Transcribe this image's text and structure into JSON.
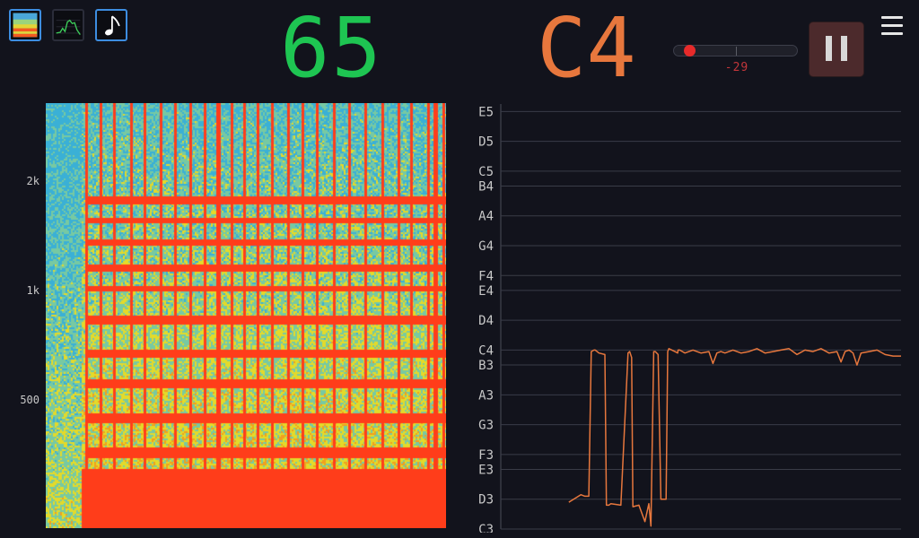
{
  "modes": [
    {
      "name": "spectrogram-mode",
      "active": true
    },
    {
      "name": "waveform-mode",
      "active": false
    },
    {
      "name": "pitch-mode",
      "active": true
    }
  ],
  "readout": {
    "number": "65",
    "note": "C4",
    "number_color": "#1ec552",
    "note_color": "#e7773d"
  },
  "slider": {
    "value_label": "-29",
    "value": -29,
    "range": [
      -100,
      100
    ]
  },
  "buttons": {
    "pause_icon": "pause-icon",
    "menu_icon": "hamburger-menu-icon"
  },
  "spectrogram": {
    "freq_labels": [
      "2k",
      "1k",
      "500"
    ],
    "colormap": [
      "#3ab0d6",
      "#77c9a2",
      "#e3da2a",
      "#f0a020",
      "#ff3d1a"
    ]
  },
  "chart_data": {
    "type": "line",
    "title": "",
    "xlabel": "",
    "ylabel": "",
    "y_tick_labels": [
      "E5",
      "D5",
      "C5",
      "B4",
      "A4",
      "G4",
      "F4",
      "E4",
      "D4",
      "C4",
      "B3",
      "A3",
      "G3",
      "F3",
      "E3",
      "D3",
      "C3"
    ],
    "y_tick_midi": [
      76,
      74,
      72,
      71,
      69,
      67,
      65,
      64,
      62,
      60,
      59,
      57,
      55,
      53,
      52,
      50,
      48
    ],
    "ylim": [
      48,
      76.5
    ],
    "grid": true,
    "series": [
      {
        "color": "#e7773d",
        "x": [
          0.17,
          0.2,
          0.21,
          0.22,
          0.226,
          0.233,
          0.236,
          0.245,
          0.26,
          0.264,
          0.27,
          0.275,
          0.3,
          0.318,
          0.322,
          0.327,
          0.33,
          0.345,
          0.36,
          0.37,
          0.375,
          0.382,
          0.386,
          0.393,
          0.4,
          0.403,
          0.413,
          0.417,
          0.42,
          0.435,
          0.442,
          0.443,
          0.447,
          0.46,
          0.48,
          0.5,
          0.52,
          0.53,
          0.54,
          0.55,
          0.56,
          0.58,
          0.6,
          0.62,
          0.64,
          0.66,
          0.68,
          0.7,
          0.72,
          0.74,
          0.76,
          0.78,
          0.8,
          0.82,
          0.84,
          0.85,
          0.86,
          0.87,
          0.88,
          0.89,
          0.9,
          0.92,
          0.94,
          0.96,
          0.98,
          1.0
        ],
        "y": [
          49.8,
          50.3,
          50.2,
          50.2,
          59.9,
          60.0,
          60.0,
          59.8,
          59.7,
          49.6,
          49.6,
          49.7,
          49.6,
          59.8,
          59.9,
          59.5,
          49.5,
          49.6,
          48.5,
          49.7,
          48.2,
          59.9,
          59.9,
          59.7,
          50.0,
          50.0,
          50.0,
          59.9,
          60.1,
          59.9,
          59.8,
          60.0,
          60.0,
          59.8,
          60.0,
          59.8,
          59.9,
          59.1,
          59.8,
          59.9,
          59.8,
          60.0,
          59.8,
          59.9,
          60.1,
          59.8,
          59.9,
          60.0,
          60.1,
          59.7,
          60.0,
          59.9,
          60.1,
          59.8,
          59.9,
          59.2,
          59.9,
          60.0,
          59.8,
          59.0,
          59.8,
          59.9,
          60.0,
          59.7,
          59.6,
          59.6
        ]
      }
    ]
  }
}
